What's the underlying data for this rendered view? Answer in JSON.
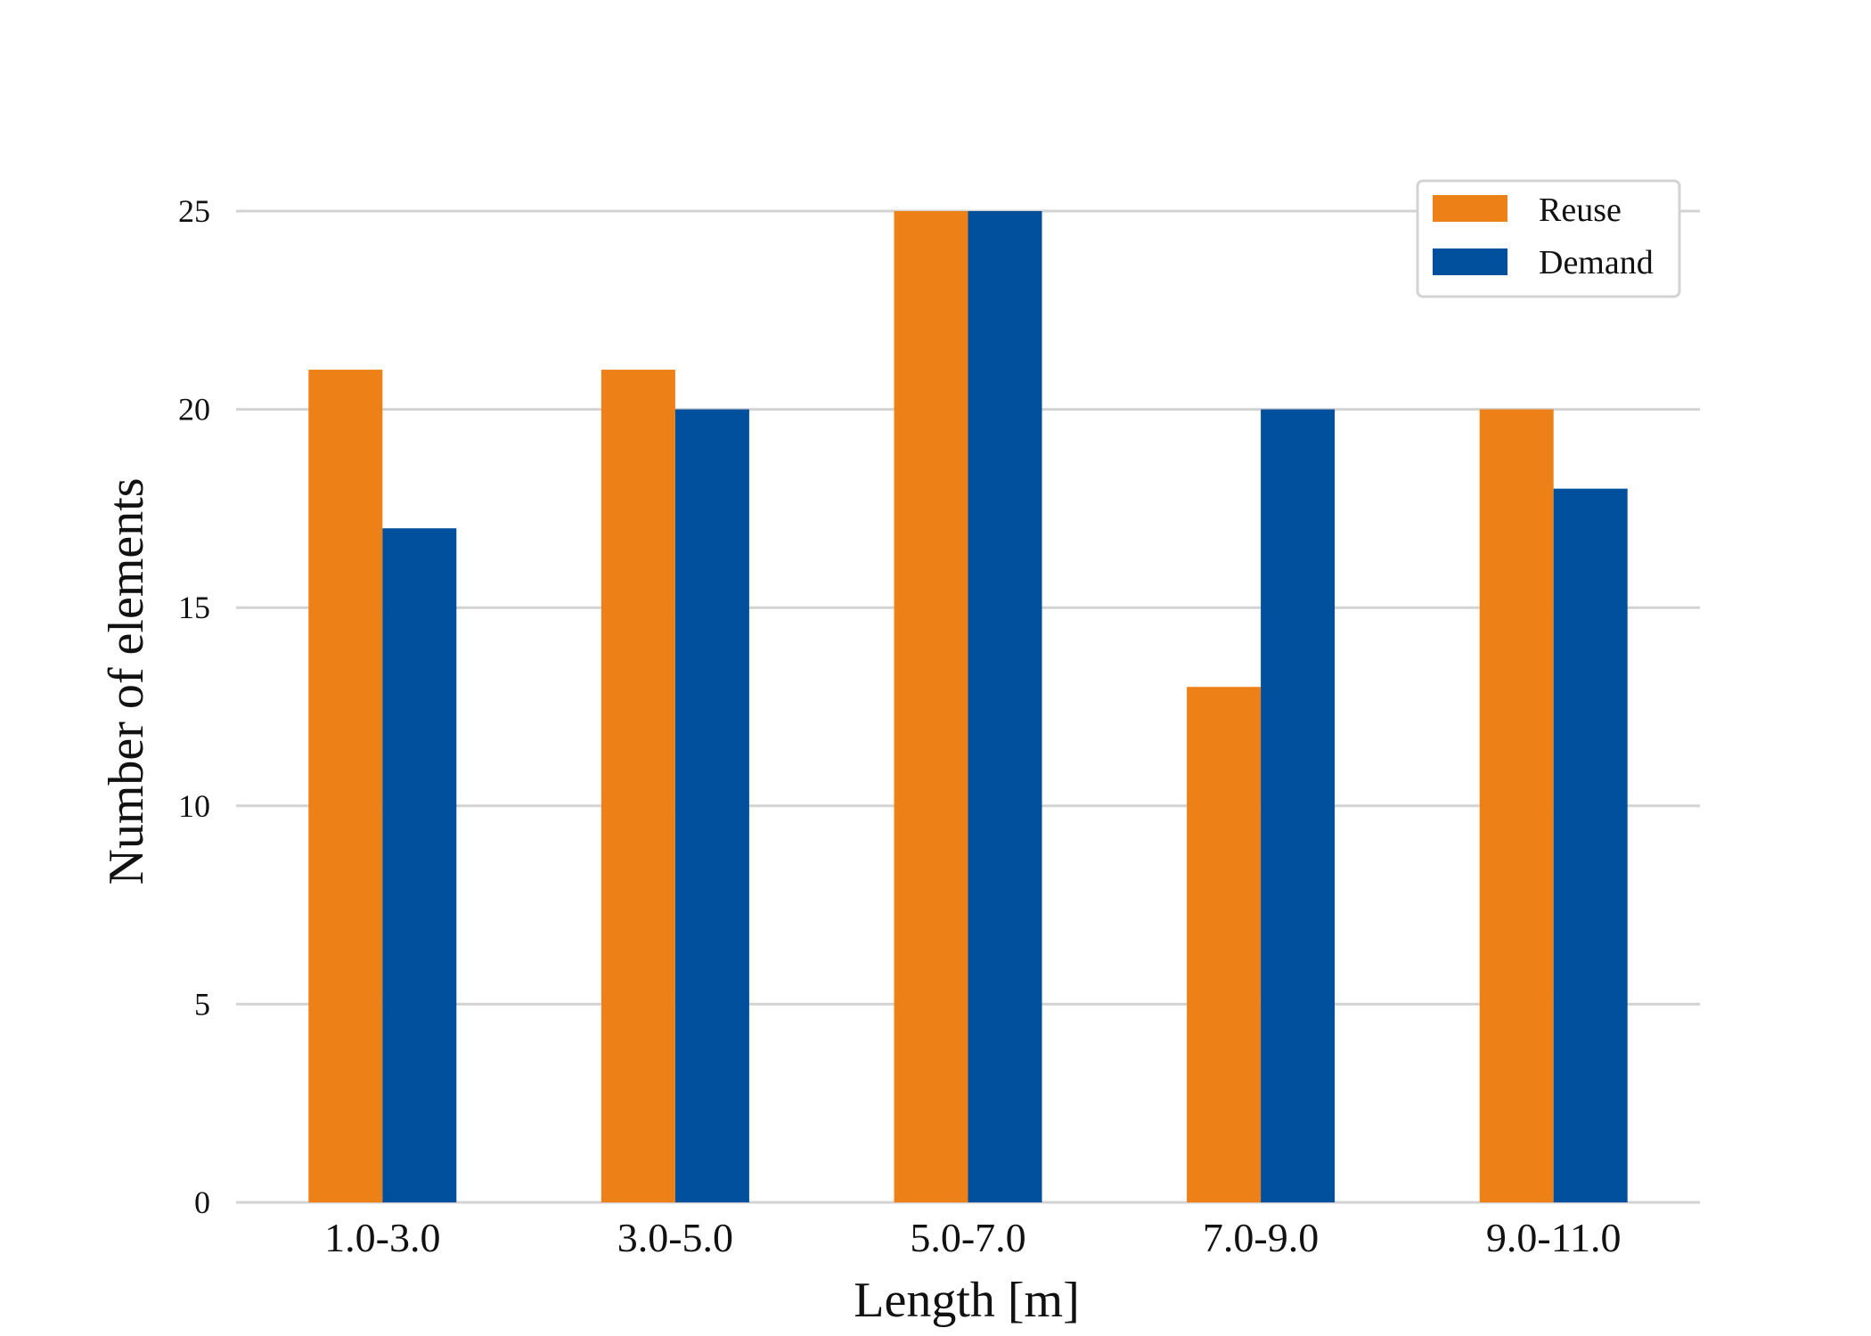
{
  "chart_data": {
    "type": "bar",
    "categories": [
      "1.0-3.0",
      "3.0-5.0",
      "5.0-7.0",
      "7.0-9.0",
      "9.0-11.0"
    ],
    "series": [
      {
        "name": "Reuse",
        "values": [
          21,
          21,
          25,
          13,
          20
        ],
        "color": "#ED8016"
      },
      {
        "name": "Demand",
        "values": [
          17,
          20,
          25,
          20,
          18
        ],
        "color": "#00509E"
      }
    ],
    "title": "",
    "xlabel": "Length [m]",
    "ylabel": "Number of elements",
    "ylim": [
      0,
      25
    ],
    "yticks": [
      "0",
      "5",
      "10",
      "15",
      "20",
      "25"
    ],
    "grid": true,
    "legend_position": "top-right",
    "colors": {
      "grid": "#D3D3D3",
      "text": "#111111"
    }
  }
}
